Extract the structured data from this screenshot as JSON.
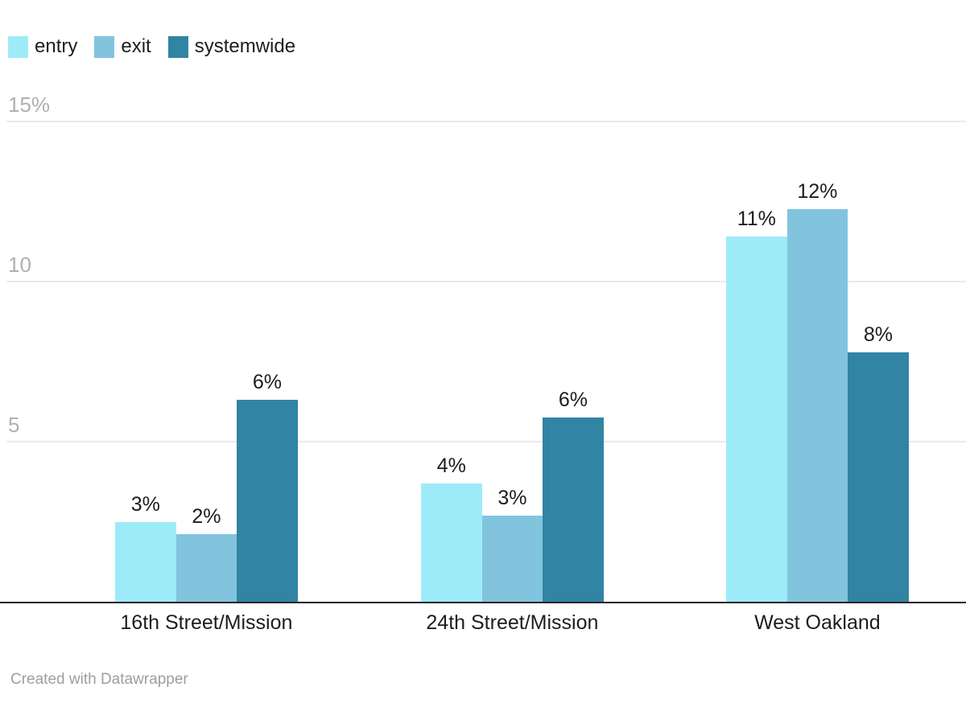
{
  "chart_data": {
    "type": "bar",
    "title": "",
    "categories": [
      "16th Street/Mission",
      "24th Street/Mission",
      "West Oakland"
    ],
    "series": [
      {
        "name": "entry",
        "color": "#9debf9",
        "values": [
          2.5,
          3.7,
          11.4
        ],
        "labels": [
          "3%",
          "4%",
          "11%"
        ]
      },
      {
        "name": "exit",
        "color": "#82c4de",
        "values": [
          2.1,
          2.7,
          12.25
        ],
        "labels": [
          "2%",
          "3%",
          "12%"
        ]
      },
      {
        "name": "systemwide",
        "color": "#3184a3",
        "values": [
          6.3,
          5.75,
          7.8
        ],
        "labels": [
          "6%",
          "6%",
          "8%"
        ]
      }
    ],
    "y_axis": {
      "ticks": [
        {
          "value": 5,
          "label": "5"
        },
        {
          "value": 10,
          "label": "10"
        },
        {
          "value": 15,
          "label": "15%"
        }
      ],
      "range": [
        0,
        15.5
      ],
      "grid": true
    },
    "legend_position": "top-left",
    "value_labels_shown": true
  },
  "legend": {
    "items": [
      {
        "label": "entry",
        "color": "#9debf9"
      },
      {
        "label": "exit",
        "color": "#82c4de"
      },
      {
        "label": "systemwide",
        "color": "#3184a3"
      }
    ]
  },
  "footer": {
    "credit": "Created with Datawrapper"
  },
  "colors": {
    "background": "#ffffff",
    "axis_line": "#262626",
    "gridline": "#e9e9e9",
    "tick_label": "#b0b0b0",
    "value_label": "#1d1d1d",
    "category_label": "#1d1d1d",
    "footer_text": "#9e9e9e"
  }
}
